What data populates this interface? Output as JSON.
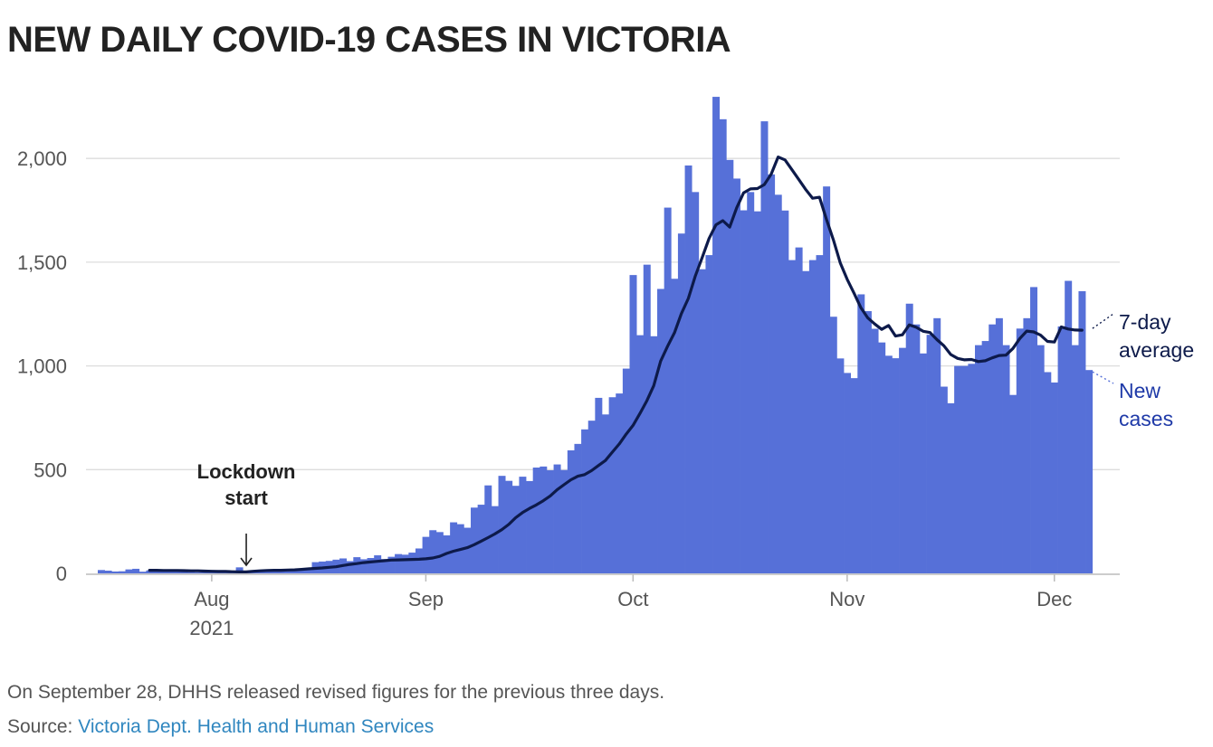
{
  "title": "NEW DAILY COVID-19 CASES IN VICTORIA",
  "note": "On September 28, DHHS released revised figures for the previous three days.",
  "source": {
    "prefix": "Source: ",
    "link_text": "Victoria Dept. Health and Human Services"
  },
  "colors": {
    "bars": "#5670d8",
    "average_line": "#0d1a4a",
    "grid": "#dddddd",
    "axis": "#bbbbbb",
    "link": "#2f86bf"
  },
  "chart_data": {
    "type": "bar",
    "title": "NEW DAILY COVID-19 CASES IN VICTORIA",
    "xlabel": "",
    "ylabel": "",
    "ylim": [
      0,
      2300
    ],
    "grid": true,
    "y_ticks": [
      {
        "value": 0,
        "label": "0"
      },
      {
        "value": 500,
        "label": "500"
      },
      {
        "value": 1000,
        "label": "1,000"
      },
      {
        "value": 1500,
        "label": "1,500"
      },
      {
        "value": 2000,
        "label": "2,000"
      }
    ],
    "x_ticks": [
      {
        "index": 16,
        "label": "Aug",
        "sublabel": "2021"
      },
      {
        "index": 47,
        "label": "Sep",
        "sublabel": ""
      },
      {
        "index": 77,
        "label": "Oct",
        "sublabel": ""
      },
      {
        "index": 108,
        "label": "Nov",
        "sublabel": ""
      },
      {
        "index": 138,
        "label": "Dec",
        "sublabel": ""
      }
    ],
    "start_date": "Jul 16, 2021",
    "series": [
      {
        "name": "New cases",
        "type": "bar",
        "values": [
          16,
          13,
          9,
          10,
          19,
          22,
          8,
          14,
          12,
          14,
          11,
          13,
          8,
          6,
          5,
          5,
          7,
          8,
          5,
          13,
          29,
          4,
          5,
          9,
          12,
          13,
          16,
          15,
          21,
          17,
          22,
          54,
          57,
          60,
          66,
          72,
          59,
          78,
          68,
          74,
          87,
          69,
          80,
          93,
          90,
          100,
          120,
          176,
          208,
          199,
          183,
          246,
          237,
          220,
          317,
          331,
          424,
          324,
          470,
          446,
          422,
          466,
          445,
          510,
          515,
          497,
          525,
          498,
          593,
          624,
          694,
          736,
          846,
          766,
          849,
          867,
          987,
          1438,
          1148,
          1488,
          1143,
          1371,
          1763,
          1420,
          1638,
          1966,
          1838,
          1466,
          1534,
          2297,
          2189,
          1993,
          1903,
          1750,
          1838,
          1745,
          2179,
          1923,
          1825,
          1749,
          1510,
          1571,
          1457,
          1510,
          1534,
          1865,
          1237,
          1036,
          966,
          941,
          1345,
          1264,
          1179,
          1113,
          1049,
          1037,
          1087,
          1300,
          1200,
          1060,
          1150,
          1230,
          900,
          820,
          1000,
          1000,
          1010,
          1100,
          1120,
          1200,
          1230,
          1100,
          860,
          1180,
          1230,
          1380,
          1100,
          970,
          920,
          1190,
          1410,
          1100,
          1360,
          980
        ]
      },
      {
        "name": "7-day average",
        "type": "line",
        "start_index": 7,
        "values": [
          15,
          15,
          14,
          14,
          14,
          13,
          12,
          12,
          11,
          10,
          9,
          9,
          8,
          7,
          7,
          10,
          12,
          14,
          15,
          15,
          16,
          17,
          19,
          22,
          24,
          26,
          29,
          32,
          38,
          43,
          47,
          52,
          55,
          58,
          61,
          64,
          65,
          66,
          67,
          68,
          70,
          74,
          82,
          96,
          107,
          115,
          124,
          138,
          155,
          172,
          190,
          211,
          236,
          268,
          293,
          313,
          330,
          350,
          373,
          403,
          427,
          451,
          468,
          476,
          495,
          520,
          544,
          584,
          624,
          671,
          713,
          771,
          832,
          905,
          1023,
          1095,
          1160,
          1252,
          1325,
          1432,
          1521,
          1614,
          1680,
          1700,
          1669,
          1762,
          1834,
          1853,
          1855,
          1874,
          1924,
          2007,
          1993,
          1946,
          1899,
          1850,
          1808,
          1813,
          1706,
          1608,
          1497,
          1417,
          1350,
          1280,
          1231,
          1202,
          1176,
          1195,
          1144,
          1150,
          1198,
          1186,
          1167,
          1161,
          1127,
          1097,
          1055,
          1036,
          1029,
          1031,
          1021,
          1025,
          1039,
          1050,
          1052,
          1084,
          1132,
          1168,
          1164,
          1148,
          1118,
          1115,
          1188,
          1178,
          1173,
          1172
        ]
      }
    ],
    "annotations": [
      {
        "text": [
          "Lockdown",
          "start"
        ],
        "index": 21,
        "value": 12
      }
    ],
    "series_labels": [
      {
        "lines": [
          "7-day",
          "average"
        ]
      },
      {
        "lines": [
          "New",
          "cases"
        ]
      }
    ]
  }
}
